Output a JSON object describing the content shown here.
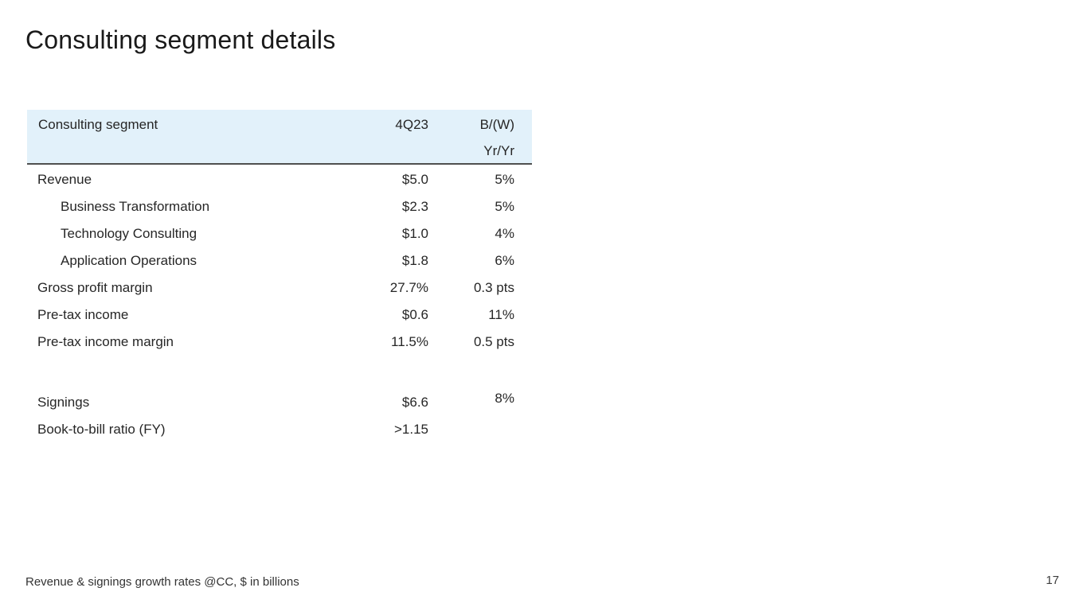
{
  "title": "Consulting segment details",
  "footnote": "Revenue & signings growth rates @CC, $ in billions",
  "page_number": "17",
  "colors": {
    "header_bg": "#e2f1fa",
    "header_border": "#4f4f4f",
    "text": "#262626",
    "title": "#1a1a1a"
  },
  "table": {
    "header": {
      "label": "Consulting segment",
      "period": "4Q23",
      "bw_line1": "B/(W)",
      "bw_line2": "Yr/Yr"
    },
    "rows": [
      {
        "label": "Revenue",
        "value": "$5.0",
        "yoy": "5%"
      },
      {
        "label": "Business Transformation",
        "value": "$2.3",
        "yoy": "5%"
      },
      {
        "label": "Technology Consulting",
        "value": "$1.0",
        "yoy": "4%"
      },
      {
        "label": "Application Operations",
        "value": "$1.8",
        "yoy": "6%"
      },
      {
        "label": "Gross profit margin",
        "value": "27.7%",
        "yoy": "0.3 pts"
      },
      {
        "label": "Pre-tax income",
        "value": "$0.6",
        "yoy": "11%"
      },
      {
        "label": "Pre-tax income margin",
        "value": "11.5%",
        "yoy": "0.5 pts"
      },
      {
        "label": "Signings",
        "value": "$6.6",
        "yoy": "8%"
      },
      {
        "label": "Book-to-bill ratio (FY)",
        "value": ">1.15",
        "yoy": ""
      }
    ]
  }
}
